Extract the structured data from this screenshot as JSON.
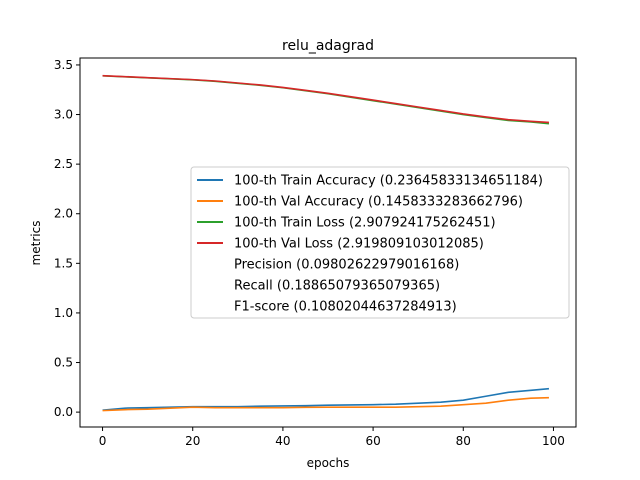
{
  "chart_data": {
    "type": "line",
    "title": "relu_adagrad",
    "xlabel": "epochs",
    "ylabel": "metrics",
    "xlim": [
      -5,
      105
    ],
    "ylim": [
      -0.15,
      3.57
    ],
    "x_ticks": [
      0,
      20,
      40,
      60,
      80,
      100
    ],
    "y_ticks": [
      0.0,
      0.5,
      1.0,
      1.5,
      2.0,
      2.5,
      3.0,
      3.5
    ],
    "legend_position": "center-right",
    "grid": false,
    "x": [
      0,
      5,
      10,
      15,
      20,
      25,
      30,
      35,
      40,
      45,
      50,
      55,
      60,
      65,
      70,
      75,
      80,
      85,
      90,
      95,
      99
    ],
    "series": [
      {
        "name": "100-th Train Accuracy (0.23645833134651184)",
        "color": "#1f77b4",
        "values": [
          0.02,
          0.04,
          0.045,
          0.05,
          0.055,
          0.055,
          0.055,
          0.06,
          0.062,
          0.065,
          0.07,
          0.072,
          0.075,
          0.08,
          0.09,
          0.1,
          0.12,
          0.16,
          0.2,
          0.22,
          0.236
        ]
      },
      {
        "name": "100-th Val Accuracy (0.1458333283662796)",
        "color": "#ff7f0e",
        "values": [
          0.015,
          0.025,
          0.03,
          0.04,
          0.05,
          0.045,
          0.045,
          0.045,
          0.045,
          0.048,
          0.05,
          0.05,
          0.05,
          0.05,
          0.055,
          0.06,
          0.075,
          0.09,
          0.12,
          0.14,
          0.146
        ]
      },
      {
        "name": "100-th Train Loss (2.907924175262451)",
        "color": "#2ca02c",
        "values": [
          3.39,
          3.38,
          3.37,
          3.36,
          3.35,
          3.335,
          3.315,
          3.295,
          3.27,
          3.24,
          3.21,
          3.175,
          3.14,
          3.105,
          3.07,
          3.035,
          3.0,
          2.97,
          2.94,
          2.925,
          2.908
        ]
      },
      {
        "name": "100-th Val Loss (2.919809103012085)",
        "color": "#d62728",
        "values": [
          3.392,
          3.382,
          3.372,
          3.362,
          3.352,
          3.338,
          3.318,
          3.298,
          3.273,
          3.244,
          3.214,
          3.18,
          3.146,
          3.111,
          3.076,
          3.041,
          3.006,
          2.976,
          2.948,
          2.932,
          2.92
        ]
      }
    ],
    "extra_legend": [
      "Precision (0.09802622979016168)",
      "Recall (0.18865079365079365)",
      "F1-score (0.10802044637284913)"
    ]
  }
}
